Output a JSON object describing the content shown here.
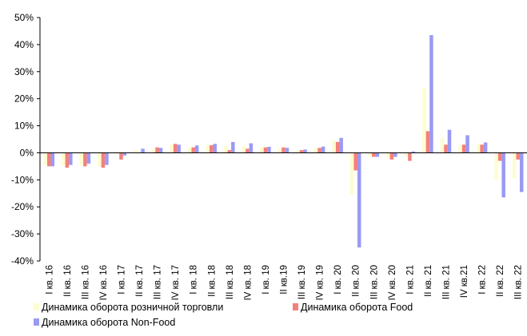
{
  "chart_data": {
    "type": "bar",
    "title": "",
    "xlabel": "",
    "ylabel": "",
    "ylim": [
      -40,
      50
    ],
    "yticks": [
      50,
      40,
      30,
      20,
      10,
      0,
      -10,
      -20,
      -30,
      -40
    ],
    "ytick_labels": [
      "50%",
      "40%",
      "30%",
      "20%",
      "10%",
      "0%",
      "-10%",
      "-20%",
      "-30%",
      "-40%"
    ],
    "grid": false,
    "legend_position": "bottom",
    "categories": [
      "I кв. 16",
      "II кв. 16",
      "III кв. 16",
      "IV кв. 16",
      "I кв. 17",
      "II кв. 17",
      "III кв. 17",
      "IV кв. 17",
      "I кв. 18",
      "II кв. 18",
      "III кв. 18",
      "IV кв. 18",
      "I кв. 19",
      "II кв.19",
      "III кв. 19",
      "IV кв. 19",
      "I кв. 20",
      "II кв. 20",
      "III кв. 20",
      "IV кв. 20",
      "I кв. 21",
      "II кв. 21",
      "III кв. 21",
      "IV кв.21",
      "I кв. 22",
      "II кв. 22",
      "III кв. 22"
    ],
    "series": [
      {
        "name": "Динамика оборота розничной торговли",
        "color": "#fdfdcf",
        "values": [
          -4.5,
          -4.8,
          -4.5,
          -5.0,
          -0.5,
          1.0,
          1.5,
          3.0,
          2.0,
          2.8,
          2.5,
          2.5,
          2.0,
          1.8,
          1.0,
          1.8,
          4.5,
          -15.5,
          -1.5,
          -2.0,
          -1.5,
          24.0,
          5.5,
          3.0,
          3.2,
          -10.0,
          -9.5
        ]
      },
      {
        "name": "Динамика оборота Food",
        "color": "#f4807d",
        "values": [
          -5.0,
          -5.5,
          -5.0,
          -5.5,
          -2.5,
          0.0,
          2.0,
          3.3,
          2.0,
          2.8,
          1.0,
          1.5,
          2.0,
          2.0,
          1.0,
          1.8,
          4.0,
          -6.5,
          -1.5,
          -2.5,
          -3.0,
          8.0,
          3.0,
          3.0,
          3.0,
          -3.0,
          -2.5
        ]
      },
      {
        "name": "Динамика оборота Non-Food",
        "color": "#9a9af4",
        "values": [
          -5.0,
          -4.5,
          -4.0,
          -4.5,
          -1.0,
          1.5,
          1.8,
          3.0,
          2.7,
          3.3,
          4.0,
          3.5,
          2.2,
          1.8,
          1.2,
          2.3,
          5.5,
          -35.0,
          -1.5,
          -1.5,
          0.5,
          43.5,
          8.5,
          6.5,
          3.8,
          -16.5,
          -14.5
        ]
      }
    ]
  }
}
